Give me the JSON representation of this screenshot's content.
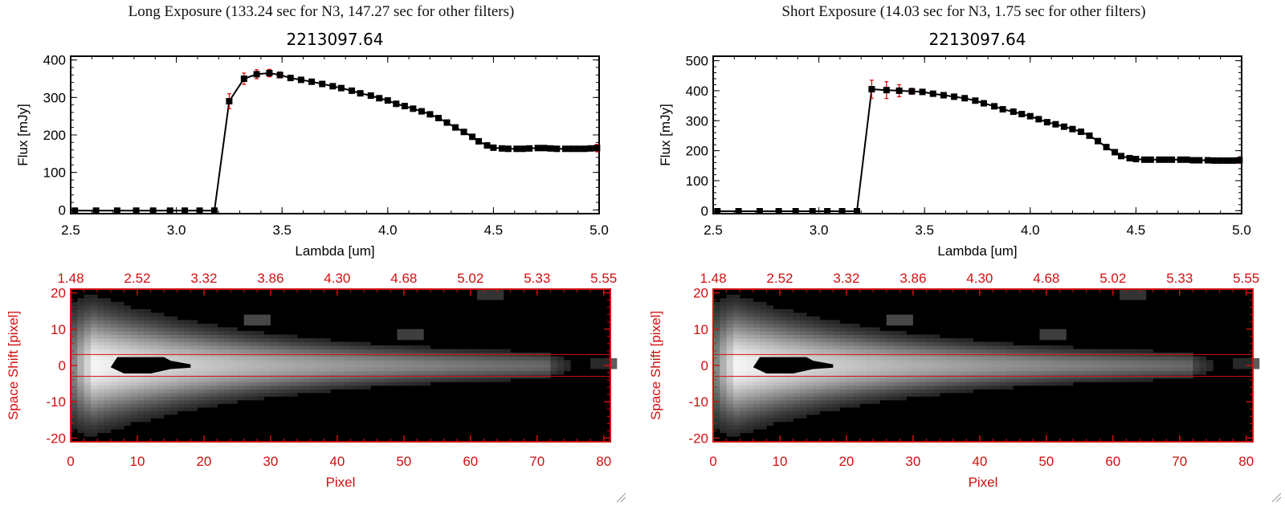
{
  "colors": {
    "axis": "#000000",
    "error": "#e00000",
    "image_axis": "#d01010",
    "band": "#d01010",
    "background": "#ffffff"
  },
  "panels": [
    {
      "header": "Long Exposure (133.24 sec for N3, 147.27 sec for other filters)",
      "spectrum": {
        "title": "2213097.64",
        "xlabel": "Lambda [um]",
        "ylabel": "Flux [mJy]",
        "xticks": [
          "2.5",
          "3.0",
          "3.5",
          "4.0",
          "4.5",
          "5.0"
        ],
        "yticks": [
          "0",
          "100",
          "200",
          "300",
          "400"
        ]
      },
      "image": {
        "top_ticks": [
          "1.48",
          "2.52",
          "3.32",
          "3.86",
          "4.30",
          "4.68",
          "5.02",
          "5.33",
          "5.55"
        ],
        "bottom_ticks": [
          "0",
          "10",
          "20",
          "30",
          "40",
          "50",
          "60",
          "70",
          "80"
        ],
        "yticks": [
          "20",
          "10",
          "0",
          "-10",
          "-20"
        ],
        "xlabel": "Pixel",
        "ylabel": "Space Shift [pixel]"
      }
    },
    {
      "header": "Short Exposure (14.03 sec for N3, 1.75 sec for other filters)",
      "spectrum": {
        "title": "2213097.64",
        "xlabel": "Lambda [um]",
        "ylabel": "Flux [mJy]",
        "xticks": [
          "2.5",
          "3.0",
          "3.5",
          "4.0",
          "4.5",
          "5.0"
        ],
        "yticks": [
          "0",
          "100",
          "200",
          "300",
          "400",
          "500"
        ]
      },
      "image": {
        "top_ticks": [
          "1.48",
          "2.52",
          "3.32",
          "3.86",
          "4.30",
          "4.68",
          "5.02",
          "5.33",
          "5.55"
        ],
        "bottom_ticks": [
          "0",
          "10",
          "20",
          "30",
          "40",
          "50",
          "60",
          "70",
          "80"
        ],
        "yticks": [
          "20",
          "10",
          "0",
          "-10",
          "-20"
        ],
        "xlabel": "Pixel",
        "ylabel": "Space Shift [pixel]"
      }
    }
  ],
  "chart_data": [
    {
      "type": "line",
      "title": "2213097.64",
      "xlabel": "Lambda [um]",
      "ylabel": "Flux [mJy]",
      "xlim": [
        2.5,
        5.0
      ],
      "ylim": [
        -10,
        410
      ],
      "grid": false,
      "x": [
        2.52,
        2.62,
        2.72,
        2.81,
        2.89,
        2.97,
        3.04,
        3.11,
        3.18,
        3.25,
        3.32,
        3.38,
        3.44,
        3.49,
        3.54,
        3.59,
        3.64,
        3.69,
        3.74,
        3.78,
        3.83,
        3.87,
        3.92,
        3.96,
        4.0,
        4.04,
        4.08,
        4.12,
        4.16,
        4.2,
        4.24,
        4.28,
        4.32,
        4.36,
        4.4,
        4.43,
        4.47,
        4.5,
        4.54,
        4.57,
        4.61,
        4.64,
        4.67,
        4.71,
        4.74,
        4.77,
        4.8,
        4.84,
        4.87,
        4.9,
        4.93,
        4.96,
        4.99
      ],
      "y": [
        -2,
        -2,
        -2,
        -2,
        -2,
        -2,
        -2,
        -2,
        -2,
        290,
        350,
        362,
        365,
        360,
        352,
        347,
        342,
        336,
        330,
        325,
        318,
        311,
        305,
        298,
        292,
        283,
        277,
        270,
        263,
        255,
        245,
        233,
        220,
        208,
        195,
        183,
        172,
        166,
        164,
        163,
        163,
        163,
        164,
        165,
        165,
        164,
        163,
        163,
        163,
        163,
        163,
        164,
        165
      ],
      "errors": [
        3,
        3,
        3,
        3,
        3,
        3,
        3,
        3,
        3,
        20,
        15,
        12,
        10,
        8,
        6,
        5,
        5,
        5,
        4,
        4,
        4,
        4,
        4,
        4,
        4,
        4,
        4,
        4,
        4,
        4,
        4,
        4,
        4,
        4,
        4,
        4,
        4,
        4,
        4,
        4,
        4,
        4,
        4,
        4,
        4,
        4,
        4,
        4,
        4,
        4,
        4,
        4,
        10
      ]
    },
    {
      "type": "line",
      "title": "2213097.64",
      "xlabel": "Lambda [um]",
      "ylabel": "Flux [mJy]",
      "xlim": [
        2.5,
        5.0
      ],
      "ylim": [
        -10,
        515
      ],
      "grid": false,
      "x": [
        2.52,
        2.62,
        2.72,
        2.81,
        2.89,
        2.97,
        3.04,
        3.11,
        3.18,
        3.25,
        3.32,
        3.38,
        3.44,
        3.49,
        3.54,
        3.59,
        3.64,
        3.69,
        3.74,
        3.78,
        3.83,
        3.87,
        3.92,
        3.96,
        4.0,
        4.04,
        4.08,
        4.12,
        4.16,
        4.2,
        4.24,
        4.28,
        4.32,
        4.36,
        4.4,
        4.43,
        4.47,
        4.5,
        4.54,
        4.57,
        4.61,
        4.64,
        4.67,
        4.71,
        4.74,
        4.77,
        4.8,
        4.84,
        4.87,
        4.9,
        4.93,
        4.96,
        4.99
      ],
      "y": [
        -2,
        -2,
        -2,
        -2,
        -2,
        -2,
        -2,
        -2,
        -2,
        405,
        402,
        400,
        398,
        396,
        390,
        385,
        380,
        375,
        367,
        358,
        348,
        338,
        330,
        322,
        315,
        305,
        295,
        288,
        280,
        272,
        263,
        250,
        232,
        212,
        195,
        182,
        175,
        172,
        170,
        170,
        170,
        170,
        170,
        170,
        170,
        168,
        168,
        168,
        167,
        167,
        167,
        167,
        168
      ],
      "errors": [
        3,
        3,
        3,
        3,
        3,
        3,
        3,
        3,
        3,
        30,
        28,
        20,
        10,
        8,
        6,
        6,
        6,
        5,
        5,
        5,
        5,
        5,
        5,
        5,
        5,
        5,
        5,
        5,
        5,
        5,
        5,
        5,
        5,
        5,
        5,
        5,
        5,
        5,
        5,
        5,
        5,
        5,
        5,
        5,
        5,
        5,
        5,
        5,
        5,
        5,
        5,
        5,
        10
      ]
    },
    {
      "type": "heatmap",
      "xlabel": "Pixel",
      "ylabel": "Space Shift [pixel]",
      "xlim": [
        0,
        81
      ],
      "ylim": [
        -21,
        21
      ],
      "secondary_xticks": [
        "1.48",
        "2.52",
        "3.32",
        "3.86",
        "4.30",
        "4.68",
        "5.02",
        "5.33",
        "5.55"
      ],
      "extraction_band": [
        -3,
        3
      ],
      "saturated_core_pixels": [
        6,
        18
      ]
    },
    {
      "type": "heatmap",
      "xlabel": "Pixel",
      "ylabel": "Space Shift [pixel]",
      "xlim": [
        0,
        81
      ],
      "ylim": [
        -21,
        21
      ],
      "secondary_xticks": [
        "1.48",
        "2.52",
        "3.32",
        "3.86",
        "4.30",
        "4.68",
        "5.02",
        "5.33",
        "5.55"
      ],
      "extraction_band": [
        -3,
        3
      ],
      "saturated_core_pixels": [
        6,
        18
      ]
    }
  ]
}
